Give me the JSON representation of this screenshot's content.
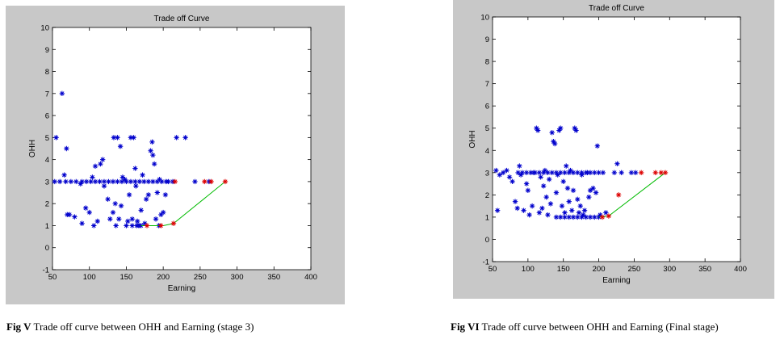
{
  "chart_data": [
    {
      "type": "scatter",
      "title": "Trade off Curve",
      "xlabel": "Earning",
      "ylabel": "OHH",
      "xlim": [
        50,
        400
      ],
      "ylim": [
        -1,
        10
      ],
      "xticks": [
        "50",
        "100",
        "150",
        "200",
        "250",
        "300",
        "350",
        "400"
      ],
      "yticks": [
        "-1",
        "0",
        "1",
        "2",
        "3",
        "4",
        "5",
        "6",
        "7",
        "8",
        "9",
        "10"
      ],
      "grid": false,
      "marker_colors": {
        "population": "#0000cc",
        "pareto": "#dd0000",
        "curve": "#00bb00"
      },
      "population": [
        [
          53,
          3
        ],
        [
          55,
          5
        ],
        [
          63,
          7
        ],
        [
          66,
          3.3
        ],
        [
          69,
          4.5
        ],
        [
          70,
          1.5
        ],
        [
          73,
          1.5
        ],
        [
          80,
          1.4
        ],
        [
          88,
          2.9
        ],
        [
          90,
          1.1
        ],
        [
          95,
          1.8
        ],
        [
          100,
          1.6
        ],
        [
          104,
          3.2
        ],
        [
          106,
          1
        ],
        [
          108,
          3.7
        ],
        [
          111,
          1.2
        ],
        [
          115,
          3.8
        ],
        [
          118,
          4
        ],
        [
          120,
          2.8
        ],
        [
          125,
          2.2
        ],
        [
          128,
          1.3
        ],
        [
          132,
          1.6
        ],
        [
          133,
          5
        ],
        [
          135,
          2
        ],
        [
          136,
          1
        ],
        [
          138,
          5
        ],
        [
          140,
          1.3
        ],
        [
          142,
          4.6
        ],
        [
          143,
          1.9
        ],
        [
          145,
          3.2
        ],
        [
          148,
          3.1
        ],
        [
          150,
          1
        ],
        [
          152,
          1.2
        ],
        [
          154,
          2.4
        ],
        [
          156,
          5
        ],
        [
          158,
          1.3
        ],
        [
          160,
          5
        ],
        [
          162,
          3.6
        ],
        [
          163,
          2.8
        ],
        [
          165,
          1.2
        ],
        [
          167,
          1
        ],
        [
          170,
          1.7
        ],
        [
          172,
          3.3
        ],
        [
          175,
          1.1
        ],
        [
          177,
          2.2
        ],
        [
          180,
          2.4
        ],
        [
          183,
          4.4
        ],
        [
          185,
          4.8
        ],
        [
          186,
          4.2
        ],
        [
          188,
          3.8
        ],
        [
          190,
          1.3
        ],
        [
          192,
          2.5
        ],
        [
          194,
          1
        ],
        [
          195,
          3.1
        ],
        [
          197,
          1.5
        ],
        [
          200,
          1.6
        ],
        [
          203,
          2.4
        ],
        [
          207,
          3
        ],
        [
          213,
          3
        ],
        [
          218,
          5
        ],
        [
          230,
          5
        ],
        [
          243,
          3
        ],
        [
          262,
          3
        ],
        [
          60,
          3
        ],
        [
          68,
          3
        ],
        [
          75,
          3
        ],
        [
          82,
          3
        ],
        [
          90,
          3
        ],
        [
          96,
          3
        ],
        [
          102,
          3
        ],
        [
          108,
          3
        ],
        [
          114,
          3
        ],
        [
          120,
          3
        ],
        [
          126,
          3
        ],
        [
          132,
          3
        ],
        [
          138,
          3
        ],
        [
          144,
          3
        ],
        [
          150,
          3
        ],
        [
          156,
          3
        ],
        [
          162,
          3
        ],
        [
          168,
          3
        ],
        [
          174,
          3
        ],
        [
          180,
          3
        ],
        [
          186,
          3
        ],
        [
          192,
          3
        ],
        [
          198,
          3
        ],
        [
          204,
          3
        ],
        [
          158,
          1
        ],
        [
          164,
          1
        ],
        [
          170,
          1
        ]
      ],
      "pareto": [
        [
          178,
          1
        ],
        [
          197,
          1
        ],
        [
          214,
          1.1
        ],
        [
          216,
          3
        ],
        [
          256,
          3
        ],
        [
          265,
          3
        ],
        [
          284,
          3
        ]
      ],
      "curve": [
        [
          170,
          1
        ],
        [
          200,
          1
        ],
        [
          214,
          1.1
        ],
        [
          284,
          3
        ]
      ]
    },
    {
      "type": "scatter",
      "title": "Trade off Curve",
      "xlabel": "Earning",
      "ylabel": "OHH",
      "xlim": [
        50,
        400
      ],
      "ylim": [
        -1,
        10
      ],
      "xticks": [
        "50",
        "100",
        "150",
        "200",
        "250",
        "300",
        "350",
        "400"
      ],
      "yticks": [
        "-1",
        "0",
        "1",
        "2",
        "3",
        "4",
        "5",
        "6",
        "7",
        "8",
        "9",
        "10"
      ],
      "grid": false,
      "marker_colors": {
        "population": "#0000cc",
        "pareto": "#dd0000",
        "curve": "#00bb00"
      },
      "population": [
        [
          55,
          3.1
        ],
        [
          57,
          1.3
        ],
        [
          60,
          2.9
        ],
        [
          65,
          3
        ],
        [
          70,
          3.1
        ],
        [
          74,
          2.8
        ],
        [
          78,
          2.6
        ],
        [
          82,
          1.7
        ],
        [
          85,
          1.4
        ],
        [
          88,
          3.3
        ],
        [
          90,
          2.9
        ],
        [
          94,
          1.3
        ],
        [
          98,
          2.5
        ],
        [
          100,
          2.2
        ],
        [
          102,
          1.1
        ],
        [
          106,
          1.5
        ],
        [
          108,
          3
        ],
        [
          112,
          5
        ],
        [
          114,
          4.9
        ],
        [
          116,
          1.2
        ],
        [
          118,
          2.8
        ],
        [
          120,
          1.4
        ],
        [
          122,
          2.4
        ],
        [
          124,
          3.1
        ],
        [
          126,
          1.9
        ],
        [
          128,
          1.1
        ],
        [
          130,
          2.7
        ],
        [
          132,
          1.6
        ],
        [
          134,
          4.8
        ],
        [
          136,
          4.4
        ],
        [
          138,
          4.3
        ],
        [
          140,
          2.1
        ],
        [
          142,
          2.9
        ],
        [
          144,
          4.9
        ],
        [
          146,
          5
        ],
        [
          148,
          1.5
        ],
        [
          150,
          2.6
        ],
        [
          152,
          1.2
        ],
        [
          154,
          3.3
        ],
        [
          156,
          2.3
        ],
        [
          158,
          1.7
        ],
        [
          160,
          3.1
        ],
        [
          162,
          1.3
        ],
        [
          164,
          2.2
        ],
        [
          166,
          5
        ],
        [
          168,
          4.9
        ],
        [
          170,
          1.8
        ],
        [
          172,
          1.2
        ],
        [
          174,
          1.5
        ],
        [
          176,
          2.9
        ],
        [
          178,
          1.1
        ],
        [
          180,
          1.3
        ],
        [
          184,
          3
        ],
        [
          186,
          1.9
        ],
        [
          188,
          2.2
        ],
        [
          192,
          2.3
        ],
        [
          196,
          2.1
        ],
        [
          198,
          4.2
        ],
        [
          202,
          1.1
        ],
        [
          206,
          3
        ],
        [
          210,
          1.2
        ],
        [
          222,
          3
        ],
        [
          226,
          3.4
        ],
        [
          232,
          3
        ],
        [
          246,
          3
        ],
        [
          252,
          3
        ],
        [
          86,
          3
        ],
        [
          92,
          3
        ],
        [
          98,
          3
        ],
        [
          104,
          3
        ],
        [
          110,
          3
        ],
        [
          116,
          3
        ],
        [
          122,
          3
        ],
        [
          128,
          3
        ],
        [
          134,
          3
        ],
        [
          140,
          3
        ],
        [
          146,
          3
        ],
        [
          152,
          3
        ],
        [
          158,
          3
        ],
        [
          164,
          3
        ],
        [
          170,
          3
        ],
        [
          176,
          3
        ],
        [
          182,
          3
        ],
        [
          188,
          3
        ],
        [
          194,
          3
        ],
        [
          200,
          3
        ],
        [
          140,
          1
        ],
        [
          146,
          1
        ],
        [
          152,
          1
        ],
        [
          158,
          1
        ],
        [
          164,
          1
        ],
        [
          170,
          1
        ],
        [
          176,
          1
        ],
        [
          182,
          1
        ],
        [
          188,
          1
        ],
        [
          194,
          1
        ],
        [
          200,
          1
        ]
      ],
      "pareto": [
        [
          205,
          1
        ],
        [
          214,
          1.05
        ],
        [
          228,
          2
        ],
        [
          260,
          3
        ],
        [
          280,
          3
        ],
        [
          288,
          3
        ],
        [
          294,
          3
        ]
      ],
      "curve": [
        [
          200,
          1
        ],
        [
          214,
          1.05
        ],
        [
          294,
          3
        ]
      ]
    }
  ],
  "captions": [
    {
      "label": "Fig V",
      "text": " Trade off curve between OHH and Earning (stage 3)"
    },
    {
      "label": "Fig VI",
      "text": " Trade off curve between OHH and Earning (Final stage)"
    }
  ]
}
